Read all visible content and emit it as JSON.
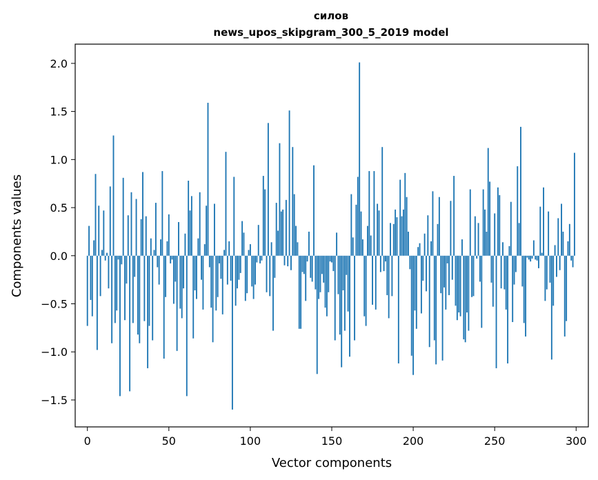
{
  "chart_data": {
    "type": "bar",
    "title": "силов",
    "subtitle": "news_upos_skipgram_300_5_2019 model",
    "xlabel": "Vector components",
    "ylabel": "Components values",
    "xlim": [
      -7.5,
      307.5
    ],
    "ylim": [
      -1.78,
      2.2
    ],
    "grid": false,
    "color": "#1f77b4",
    "x_ticks": [
      0,
      50,
      100,
      150,
      200,
      250,
      300
    ],
    "x_tick_labels": [
      "0",
      "50",
      "100",
      "150",
      "200",
      "250",
      "300"
    ],
    "y_ticks": [
      -1.5,
      -1.0,
      -0.5,
      0.0,
      0.5,
      1.0,
      1.5,
      2.0
    ],
    "y_tick_labels": [
      "−1.5",
      "−1.0",
      "−0.5",
      "0.0",
      "0.5",
      "1.0",
      "1.5",
      "2.0"
    ],
    "values": [
      -0.73,
      0.31,
      -0.46,
      -0.63,
      0.16,
      0.85,
      -0.98,
      0.52,
      -0.42,
      0.06,
      0.47,
      -0.05,
      0.03,
      -0.34,
      0.72,
      -0.91,
      1.25,
      -0.7,
      -0.57,
      -0.04,
      -1.46,
      -0.09,
      0.81,
      -0.67,
      -0.29,
      0.42,
      -1.41,
      0.66,
      -0.7,
      -0.22,
      0.59,
      -0.82,
      -0.91,
      0.38,
      0.87,
      -0.68,
      0.41,
      -1.17,
      -0.73,
      0.18,
      -0.88,
      0.06,
      0.55,
      -0.12,
      -0.3,
      0.17,
      0.88,
      -1.07,
      -0.43,
      0.15,
      0.43,
      -0.08,
      -0.04,
      -0.5,
      -0.27,
      -0.99,
      0.35,
      -0.55,
      -0.65,
      -0.34,
      0.23,
      -1.46,
      0.78,
      0.47,
      0.62,
      -0.86,
      -0.36,
      -0.45,
      0.18,
      0.66,
      -0.25,
      -0.56,
      0.12,
      0.52,
      1.59,
      -0.12,
      -0.54,
      -0.9,
      0.54,
      -0.57,
      -0.43,
      -0.08,
      -0.24,
      -0.61,
      0.06,
      1.08,
      -0.3,
      0.15,
      -0.26,
      -1.6,
      0.82,
      -0.52,
      -0.34,
      -0.25,
      -0.18,
      0.36,
      0.24,
      -0.47,
      -0.39,
      0.06,
      0.12,
      -0.32,
      -0.45,
      -0.3,
      -0.07,
      0.32,
      -0.08,
      -0.05,
      0.83,
      0.69,
      -0.38,
      1.38,
      -0.42,
      0.14,
      -0.78,
      -0.23,
      0.55,
      0.26,
      1.17,
      0.46,
      0.48,
      -0.1,
      0.58,
      -0.11,
      1.51,
      -0.15,
      1.13,
      0.64,
      0.31,
      0.14,
      -0.76,
      -0.76,
      -0.17,
      -0.19,
      -0.47,
      -0.06,
      0.25,
      -0.23,
      -0.27,
      0.94,
      -0.35,
      -1.23,
      -0.45,
      -0.38,
      -0.19,
      -0.28,
      -0.54,
      -0.63,
      -0.38,
      -0.06,
      -0.07,
      -0.16,
      -0.88,
      0.24,
      -0.4,
      -0.82,
      -1.16,
      -0.36,
      -0.78,
      -0.2,
      -0.58,
      -1.05,
      0.64,
      0.19,
      -0.88,
      0.53,
      0.82,
      2.01,
      0.46,
      0.17,
      -0.63,
      -0.73,
      0.31,
      0.88,
      0.21,
      -0.51,
      0.88,
      -0.56,
      0.54,
      0.47,
      -0.17,
      1.13,
      -0.16,
      -0.06,
      -0.41,
      -0.65,
      0.34,
      -0.42,
      0.33,
      0.48,
      0.4,
      -1.12,
      0.79,
      0.41,
      0.48,
      0.86,
      0.61,
      0.25,
      -0.14,
      -1.04,
      -1.24,
      -0.57,
      -0.76,
      0.09,
      0.13,
      -0.6,
      -0.26,
      0.23,
      -0.37,
      0.42,
      -0.95,
      0.15,
      0.67,
      -0.88,
      -1.13,
      0.33,
      0.61,
      -0.39,
      -1.09,
      -0.33,
      -0.56,
      -0.08,
      -0.41,
      0.57,
      -0.25,
      0.83,
      -0.52,
      -0.67,
      -0.59,
      -0.63,
      0.17,
      -0.87,
      -0.9,
      -0.59,
      -0.78,
      0.69,
      -0.43,
      -0.42,
      0.41,
      -0.03,
      0.34,
      -0.27,
      -0.75,
      0.69,
      0.48,
      0.25,
      1.12,
      0.77,
      -0.28,
      -0.53,
      0.44,
      -1.17,
      0.71,
      0.63,
      -0.34,
      0.14,
      -0.35,
      -0.56,
      -1.12,
      0.1,
      0.56,
      -0.69,
      -0.3,
      -0.17,
      0.93,
      0.34,
      1.34,
      -0.32,
      -0.7,
      -0.84,
      -0.02,
      -0.04,
      -0.06,
      -0.03,
      0.16,
      -0.04,
      -0.05,
      -0.13,
      0.51,
      0.03,
      0.71,
      -0.47,
      -0.35,
      0.46,
      -0.28,
      -1.08,
      -0.52,
      0.11,
      -0.22,
      0.39,
      -0.15,
      0.54,
      0.25,
      -0.84,
      -0.68,
      0.15,
      0.33,
      -0.05,
      -0.12,
      1.07
    ]
  }
}
